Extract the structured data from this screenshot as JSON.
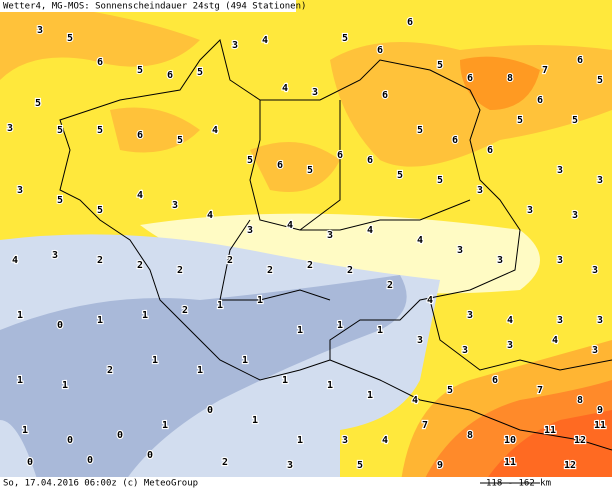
{
  "header": {
    "title": "Wetter4, MG-MOS: Sonnenscheindauer 24stg (494 Stationen)"
  },
  "footer": {
    "caption": "So, 17.04.2016 06:00z (c) MeteoGroup",
    "scale": "118 - 162 km"
  },
  "stations": [
    3,
    5,
    6,
    5,
    3,
    5,
    6,
    5,
    3,
    4,
    4,
    3,
    5,
    6,
    6,
    5,
    6,
    8,
    7,
    6,
    5,
    6,
    5,
    6,
    5,
    6,
    6,
    5,
    3,
    3,
    5,
    5,
    6,
    5,
    4,
    5,
    6,
    5,
    6,
    6,
    5,
    5,
    3,
    3,
    3,
    3,
    5,
    5,
    4,
    3,
    4,
    3,
    4,
    3,
    4,
    4,
    3,
    3,
    3,
    3,
    4,
    3,
    2,
    2,
    2,
    2,
    2,
    2,
    2,
    2,
    4,
    3,
    4,
    3,
    3,
    1,
    0,
    1,
    1,
    2,
    1,
    1,
    1,
    1,
    1,
    3,
    3,
    3,
    4,
    3,
    1,
    1,
    2,
    1,
    1,
    1,
    1,
    1,
    1,
    4,
    5,
    6,
    7,
    8,
    9,
    1,
    0,
    0,
    1,
    0,
    1,
    1,
    3,
    4,
    7,
    8,
    10,
    11,
    12,
    11,
    0,
    0,
    0,
    2,
    3,
    5,
    9,
    11,
    12
  ]
}
